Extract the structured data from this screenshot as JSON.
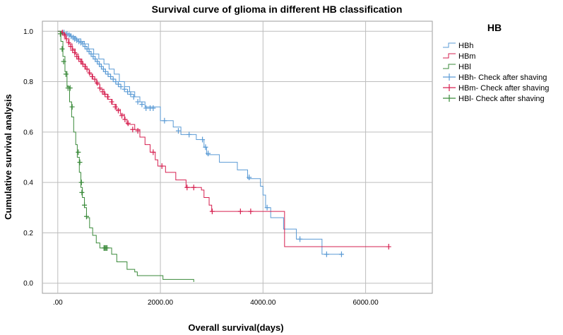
{
  "chart_data": {
    "type": "line",
    "title": "Survival curve of glioma in different HB classification",
    "xlabel": "Overall survival(days)",
    "ylabel": "Cumulative survival analysis",
    "xlim": [
      -300,
      7300
    ],
    "ylim": [
      -0.04,
      1.04
    ],
    "x_ticks": [
      0,
      2000,
      4000,
      6000
    ],
    "x_tick_labels": [
      ".00",
      "2000.00",
      "4000.00",
      "6000.00"
    ],
    "y_ticks": [
      0,
      0.2,
      0.4,
      0.6,
      0.8,
      1.0
    ],
    "y_tick_labels": [
      "0.0",
      "0.2",
      "0.4",
      "0.6",
      "0.8",
      "1.0"
    ],
    "grid": true,
    "legend_title": "HB",
    "legend_position": "right",
    "legend": [
      {
        "label": "HBh",
        "kind": "step",
        "series": "HBh"
      },
      {
        "label": "HBm",
        "kind": "step",
        "series": "HBm"
      },
      {
        "label": "HBl",
        "kind": "step",
        "series": "HBl"
      },
      {
        "label": "HBh- Check after shaving",
        "kind": "censor",
        "series": "HBh"
      },
      {
        "label": "HBm- Check after shaving",
        "kind": "censor",
        "series": "HBm"
      },
      {
        "label": "HBl- Check after shaving",
        "kind": "censor",
        "series": "HBl"
      }
    ],
    "series": [
      {
        "name": "HBh",
        "color": "#5b9bd5",
        "steps": [
          [
            0,
            1.0
          ],
          [
            100,
            0.99
          ],
          [
            250,
            0.98
          ],
          [
            350,
            0.97
          ],
          [
            450,
            0.96
          ],
          [
            520,
            0.95
          ],
          [
            600,
            0.93
          ],
          [
            700,
            0.91
          ],
          [
            800,
            0.89
          ],
          [
            900,
            0.87
          ],
          [
            1000,
            0.85
          ],
          [
            1100,
            0.83
          ],
          [
            1200,
            0.8
          ],
          [
            1300,
            0.78
          ],
          [
            1400,
            0.76
          ],
          [
            1500,
            0.74
          ],
          [
            1600,
            0.72
          ],
          [
            1700,
            0.7
          ],
          [
            2000,
            0.645
          ],
          [
            2150,
            0.645
          ],
          [
            2250,
            0.62
          ],
          [
            2400,
            0.59
          ],
          [
            2700,
            0.57
          ],
          [
            2850,
            0.54
          ],
          [
            2900,
            0.51
          ],
          [
            3150,
            0.48
          ],
          [
            3500,
            0.45
          ],
          [
            3700,
            0.415
          ],
          [
            3950,
            0.385
          ],
          [
            4000,
            0.35
          ],
          [
            4050,
            0.3
          ],
          [
            4150,
            0.26
          ],
          [
            4400,
            0.215
          ],
          [
            4650,
            0.175
          ],
          [
            5150,
            0.115
          ],
          [
            5550,
            0.115
          ]
        ],
        "censors": [
          [
            120,
            0.995
          ],
          [
            180,
            0.99
          ],
          [
            220,
            0.985
          ],
          [
            260,
            0.98
          ],
          [
            300,
            0.975
          ],
          [
            330,
            0.97
          ],
          [
            370,
            0.965
          ],
          [
            410,
            0.96
          ],
          [
            450,
            0.955
          ],
          [
            490,
            0.95
          ],
          [
            530,
            0.94
          ],
          [
            570,
            0.93
          ],
          [
            610,
            0.92
          ],
          [
            650,
            0.91
          ],
          [
            690,
            0.9
          ],
          [
            730,
            0.89
          ],
          [
            770,
            0.88
          ],
          [
            810,
            0.87
          ],
          [
            850,
            0.86
          ],
          [
            890,
            0.85
          ],
          [
            930,
            0.84
          ],
          [
            980,
            0.83
          ],
          [
            1030,
            0.82
          ],
          [
            1080,
            0.81
          ],
          [
            1130,
            0.8
          ],
          [
            1180,
            0.79
          ],
          [
            1230,
            0.78
          ],
          [
            1300,
            0.77
          ],
          [
            1360,
            0.76
          ],
          [
            1420,
            0.75
          ],
          [
            1480,
            0.74
          ],
          [
            1560,
            0.72
          ],
          [
            1640,
            0.71
          ],
          [
            1720,
            0.695
          ],
          [
            1800,
            0.695
          ],
          [
            1860,
            0.695
          ],
          [
            2080,
            0.645
          ],
          [
            2350,
            0.605
          ],
          [
            2560,
            0.59
          ],
          [
            2820,
            0.57
          ],
          [
            2880,
            0.54
          ],
          [
            2930,
            0.515
          ],
          [
            3730,
            0.42
          ],
          [
            4080,
            0.3
          ],
          [
            4720,
            0.175
          ],
          [
            5240,
            0.115
          ],
          [
            5530,
            0.115
          ]
        ]
      },
      {
        "name": "HBm",
        "color": "#d62050",
        "steps": [
          [
            0,
            1.0
          ],
          [
            80,
            0.99
          ],
          [
            150,
            0.97
          ],
          [
            220,
            0.95
          ],
          [
            280,
            0.93
          ],
          [
            340,
            0.91
          ],
          [
            400,
            0.89
          ],
          [
            470,
            0.87
          ],
          [
            540,
            0.85
          ],
          [
            610,
            0.83
          ],
          [
            680,
            0.81
          ],
          [
            750,
            0.79
          ],
          [
            820,
            0.77
          ],
          [
            900,
            0.75
          ],
          [
            980,
            0.73
          ],
          [
            1060,
            0.71
          ],
          [
            1140,
            0.69
          ],
          [
            1220,
            0.67
          ],
          [
            1300,
            0.65
          ],
          [
            1350,
            0.63
          ],
          [
            1500,
            0.61
          ],
          [
            1600,
            0.58
          ],
          [
            1700,
            0.55
          ],
          [
            1800,
            0.52
          ],
          [
            1900,
            0.49
          ],
          [
            1950,
            0.465
          ],
          [
            2100,
            0.44
          ],
          [
            2300,
            0.41
          ],
          [
            2500,
            0.38
          ],
          [
            2800,
            0.37
          ],
          [
            2850,
            0.34
          ],
          [
            2950,
            0.31
          ],
          [
            3000,
            0.285
          ],
          [
            4400,
            0.285
          ],
          [
            4420,
            0.145
          ],
          [
            6450,
            0.145
          ]
        ],
        "censors": [
          [
            90,
            0.995
          ],
          [
            130,
            0.985
          ],
          [
            170,
            0.97
          ],
          [
            210,
            0.955
          ],
          [
            250,
            0.94
          ],
          [
            290,
            0.925
          ],
          [
            330,
            0.915
          ],
          [
            370,
            0.9
          ],
          [
            410,
            0.89
          ],
          [
            450,
            0.88
          ],
          [
            490,
            0.87
          ],
          [
            530,
            0.86
          ],
          [
            570,
            0.85
          ],
          [
            620,
            0.835
          ],
          [
            670,
            0.82
          ],
          [
            720,
            0.81
          ],
          [
            770,
            0.795
          ],
          [
            820,
            0.775
          ],
          [
            870,
            0.76
          ],
          [
            920,
            0.75
          ],
          [
            970,
            0.74
          ],
          [
            1050,
            0.72
          ],
          [
            1120,
            0.7
          ],
          [
            1180,
            0.685
          ],
          [
            1250,
            0.665
          ],
          [
            1310,
            0.65
          ],
          [
            1370,
            0.635
          ],
          [
            1460,
            0.61
          ],
          [
            1560,
            0.605
          ],
          [
            1860,
            0.52
          ],
          [
            2030,
            0.465
          ],
          [
            2520,
            0.38
          ],
          [
            2650,
            0.38
          ],
          [
            3010,
            0.285
          ],
          [
            3560,
            0.285
          ],
          [
            3760,
            0.285
          ],
          [
            6450,
            0.145
          ]
        ]
      },
      {
        "name": "HBl",
        "color": "#3a8a3a",
        "steps": [
          [
            0,
            1.0
          ],
          [
            60,
            0.96
          ],
          [
            100,
            0.9
          ],
          [
            140,
            0.84
          ],
          [
            180,
            0.78
          ],
          [
            230,
            0.72
          ],
          [
            270,
            0.66
          ],
          [
            310,
            0.6
          ],
          [
            350,
            0.55
          ],
          [
            380,
            0.5
          ],
          [
            420,
            0.44
          ],
          [
            450,
            0.38
          ],
          [
            480,
            0.34
          ],
          [
            520,
            0.3
          ],
          [
            560,
            0.26
          ],
          [
            620,
            0.22
          ],
          [
            680,
            0.19
          ],
          [
            750,
            0.16
          ],
          [
            820,
            0.14
          ],
          [
            1000,
            0.14
          ],
          [
            1050,
            0.115
          ],
          [
            1150,
            0.085
          ],
          [
            1300,
            0.085
          ],
          [
            1350,
            0.055
          ],
          [
            1500,
            0.045
          ],
          [
            1550,
            0.03
          ],
          [
            2000,
            0.03
          ],
          [
            2050,
            0.015
          ],
          [
            2650,
            0.015
          ],
          [
            2650,
            0.005
          ]
        ],
        "censors": [
          [
            50,
            0.99
          ],
          [
            85,
            0.93
          ],
          [
            115,
            0.88
          ],
          [
            160,
            0.83
          ],
          [
            200,
            0.775
          ],
          [
            240,
            0.775
          ],
          [
            280,
            0.7
          ],
          [
            400,
            0.52
          ],
          [
            430,
            0.48
          ],
          [
            460,
            0.4
          ],
          [
            470,
            0.36
          ],
          [
            520,
            0.31
          ],
          [
            560,
            0.265
          ],
          [
            900,
            0.14
          ],
          [
            920,
            0.14
          ],
          [
            940,
            0.14
          ],
          [
            960,
            0.14
          ]
        ]
      }
    ]
  }
}
